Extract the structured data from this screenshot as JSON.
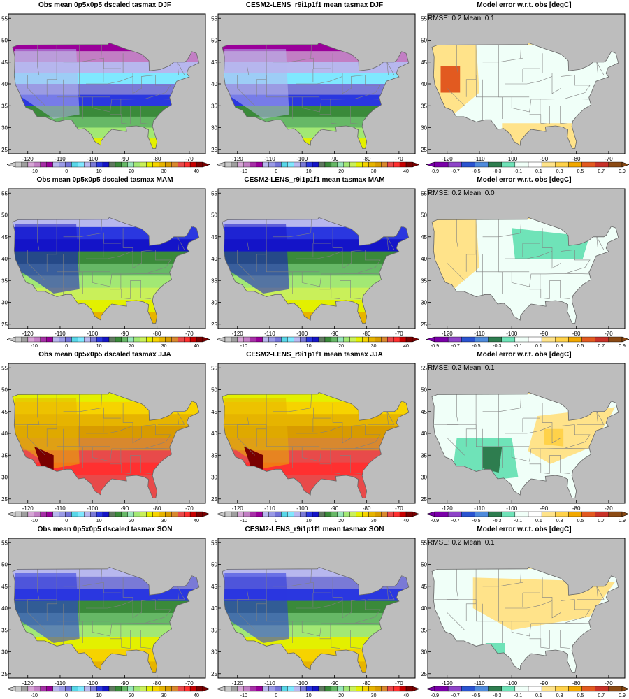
{
  "rows": [
    {
      "season": "DJF",
      "obs_title": "Obs mean 0p5x0p5 dscaled tasmax DJF",
      "model_title": "CESM2-LENS_r9i1p1f1 mean tasmax DJF",
      "err_title": "Model error w.r.t. obs [degC]",
      "err_stats": "RMSE: 0.2  Mean: 0.1"
    },
    {
      "season": "MAM",
      "obs_title": "Obs mean 0p5x0p5 dscaled tasmax MAM",
      "model_title": "CESM2-LENS_r9i1p1f1 mean tasmax MAM",
      "err_title": "Model error w.r.t. obs [degC]",
      "err_stats": "RMSE: 0.2  Mean: 0.0"
    },
    {
      "season": "JJA",
      "obs_title": "Obs mean 0p5x0p5 dscaled tasmax JJA",
      "model_title": "CESM2-LENS_r9i1p1f1 mean tasmax JJA",
      "err_title": "Model error w.r.t. obs [degC]",
      "err_stats": "RMSE: 0.2  Mean: 0.1"
    },
    {
      "season": "SON",
      "obs_title": "Obs mean 0p5x0p5 dscaled tasmax SON",
      "model_title": "CESM2-LENS_r9i1p1f1 mean tasmax SON",
      "err_title": "Model error w.r.t. obs [degC]",
      "err_stats": "RMSE: 0.2  Mean: 0.1"
    }
  ],
  "axes": {
    "lon_ticks": [
      "-120",
      "-110",
      "-100",
      "-90",
      "-80",
      "-70"
    ],
    "lat_ticks": [
      "25",
      "30",
      "35",
      "40",
      "45",
      "50",
      "55"
    ]
  },
  "temp_colorbar": {
    "labels": [
      "-10",
      "0",
      "10",
      "20",
      "30",
      "40"
    ],
    "colors": [
      "#c8c8c8",
      "#9e9e9e",
      "#d6a6d6",
      "#c27ec4",
      "#a62fa6",
      "#9a009a",
      "#b7b7ee",
      "#9a9ae6",
      "#7373d9",
      "#58d7e8",
      "#7fe8ff",
      "#b9b9f0",
      "#7a7ad6",
      "#2a37e0",
      "#1414c8",
      "#607860",
      "#3a8a3a",
      "#66b866",
      "#99e6b8",
      "#a2e874",
      "#c9f05a",
      "#e3f000",
      "#f6d300",
      "#e6b400",
      "#d89b00",
      "#d8882e",
      "#e84a4a",
      "#ff3030",
      "#c80000",
      "#7a0000"
    ]
  },
  "error_colorbar": {
    "labels": [
      "-0.9",
      "-0.7",
      "-0.5",
      "-0.3",
      "-0.1",
      "0.1",
      "0.3",
      "0.5",
      "0.7",
      "0.9"
    ],
    "colors": [
      "#7a00a8",
      "#8e44c8",
      "#2a53d0",
      "#4f8bdc",
      "#2e7d4f",
      "#6fe3b8",
      "#f0fff8",
      "#ffffff",
      "#ffe38a",
      "#ffd24a",
      "#f2a800",
      "#e25a20",
      "#c83228",
      "#8b4a14"
    ]
  },
  "legend_values": {
    "obs_temperature_range_degC": [
      -10,
      40
    ],
    "model_error_range_degC": [
      -0.9,
      0.9
    ]
  }
}
